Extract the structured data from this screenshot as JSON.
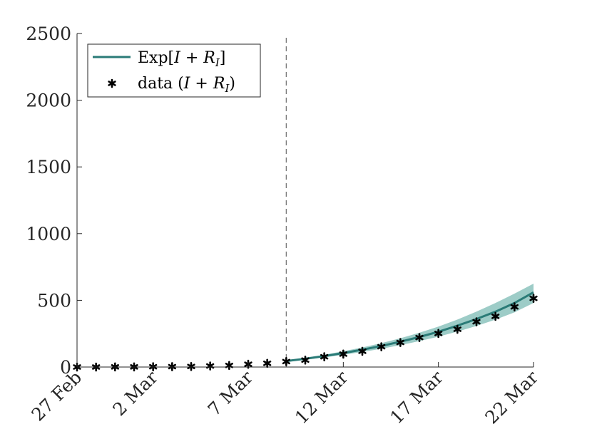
{
  "chart_data": {
    "type": "line",
    "title": "",
    "xlabel": "",
    "ylabel": "",
    "ylim": [
      0,
      2500
    ],
    "yticks": [
      0,
      500,
      1000,
      1500,
      2000,
      2500
    ],
    "ytick_labels": [
      "0",
      "500",
      "1000",
      "1500",
      "2000",
      "2500"
    ],
    "xlim": [
      0,
      24
    ],
    "xticks": [
      0,
      4,
      9,
      14,
      19,
      24
    ],
    "xtick_labels": [
      "27 Feb",
      "2 Mar",
      "7 Mar",
      "12 Mar",
      "17 Mar",
      "22 Mar"
    ],
    "vertical_line_x": 11,
    "legend_position": "top-left",
    "colors": {
      "model": "#2a7b77",
      "band": "#3b9a90",
      "data": "#000000",
      "axis": "#262626",
      "vline": "#777777"
    },
    "series": [
      {
        "name": "Exp[I + R_I]",
        "legend_main": "Exp[",
        "legend_italic_1": "I",
        "legend_op": " + ",
        "legend_italic_2": "R",
        "legend_sub": "I",
        "legend_close": "]",
        "kind": "line_with_band",
        "x": [
          11,
          12,
          13,
          14,
          15,
          16,
          17,
          18,
          19,
          20,
          21,
          22,
          23,
          24
        ],
        "values": [
          45,
          62,
          82,
          105,
          130,
          158,
          190,
          225,
          265,
          310,
          360,
          415,
          480,
          560
        ],
        "lower": [
          40,
          55,
          72,
          92,
          113,
          137,
          164,
          194,
          228,
          266,
          308,
          355,
          410,
          480
        ],
        "upper": [
          50,
          69,
          92,
          118,
          147,
          179,
          216,
          257,
          303,
          356,
          415,
          480,
          550,
          625
        ]
      },
      {
        "name": "data (I + R_I)",
        "legend_main": "data (",
        "legend_italic_1": "I",
        "legend_op": " + ",
        "legend_italic_2": "R",
        "legend_sub": "I",
        "legend_close": ")",
        "kind": "markers",
        "x": [
          0,
          1,
          2,
          3,
          4,
          5,
          6,
          7,
          8,
          9,
          10,
          11,
          12,
          13,
          14,
          15,
          16,
          17,
          18,
          19,
          20,
          21,
          22,
          23,
          24
        ],
        "values": [
          0,
          0,
          1,
          1,
          2,
          3,
          4,
          8,
          12,
          21,
          28,
          41,
          52,
          77,
          97,
          118,
          152,
          184,
          221,
          252,
          283,
          339,
          380,
          451,
          515
        ]
      }
    ]
  }
}
